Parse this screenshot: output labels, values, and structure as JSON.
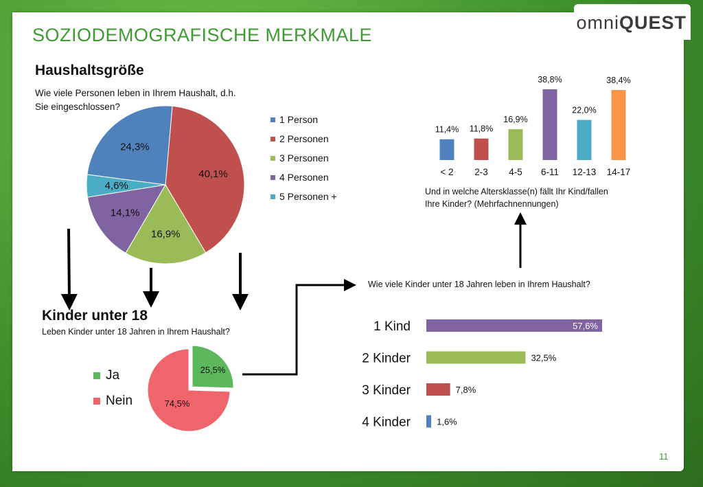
{
  "slide": {
    "title": "SOZIODEMOGRAFISCHE MERKMALE",
    "logo_prefix": "omni",
    "logo_suffix": "QUEST",
    "page_number": "11"
  },
  "household": {
    "heading": "Haushaltsgröße",
    "question_line1": "Wie viele Personen leben in Ihrem Haushalt, d.h.",
    "question_line2": "Sie eingeschlossen?"
  },
  "children": {
    "heading": "Kinder unter 18",
    "question": "Leben Kinder unter 18 Jahren in Ihrem Haushalt?"
  },
  "count_question": "Wie viele Kinder unter 18 Jahren leben in Ihrem Haushalt?",
  "age_question_line1": "Und in welche Altersklasse(n) fällt Ihr Kind/fallen",
  "age_question_line2": "Ihre Kinder? (Mehrfachnennungen)",
  "chart_data": [
    {
      "type": "pie",
      "categories": [
        "1 Person",
        "2 Personen",
        "3 Personen",
        "4 Personen",
        "5 Personen +"
      ],
      "values": [
        24.3,
        40.1,
        16.9,
        14.1,
        4.6
      ],
      "labels": [
        "24,3%",
        "40,1%",
        "16,9%",
        "14,1%",
        "4,6%"
      ],
      "colors": [
        "#4f81bd",
        "#c0504d",
        "#9bbb59",
        "#8064a2",
        "#4bacc6"
      ],
      "legend": "right"
    },
    {
      "type": "pie",
      "categories": [
        "Ja",
        "Nein"
      ],
      "values": [
        25.5,
        74.5
      ],
      "labels": [
        "25,5%",
        "74,5%"
      ],
      "colors": [
        "#5cb85c",
        "#f0646c"
      ],
      "legend": "left"
    },
    {
      "type": "bar",
      "orientation": "vertical",
      "categories": [
        "< 2",
        "2-3",
        "4-5",
        "6-11",
        "12-13",
        "14-17"
      ],
      "values": [
        11.4,
        11.8,
        16.9,
        38.8,
        22.0,
        38.4
      ],
      "labels": [
        "11,4%",
        "11,8%",
        "16,9%",
        "38,8%",
        "22,0%",
        "38,4%"
      ],
      "colors": [
        "#4f81bd",
        "#c0504d",
        "#9bbb59",
        "#8064a2",
        "#4bacc6",
        "#f79646"
      ]
    },
    {
      "type": "bar",
      "orientation": "horizontal",
      "categories": [
        "1 Kind",
        "2 Kinder",
        "3 Kinder",
        "4 Kinder"
      ],
      "values": [
        57.6,
        32.5,
        7.8,
        1.6
      ],
      "labels": [
        "57,6%",
        "32,5%",
        "7,8%",
        "1,6%"
      ],
      "colors": [
        "#8064a2",
        "#9bbb59",
        "#c0504d",
        "#4f81bd"
      ]
    }
  ]
}
